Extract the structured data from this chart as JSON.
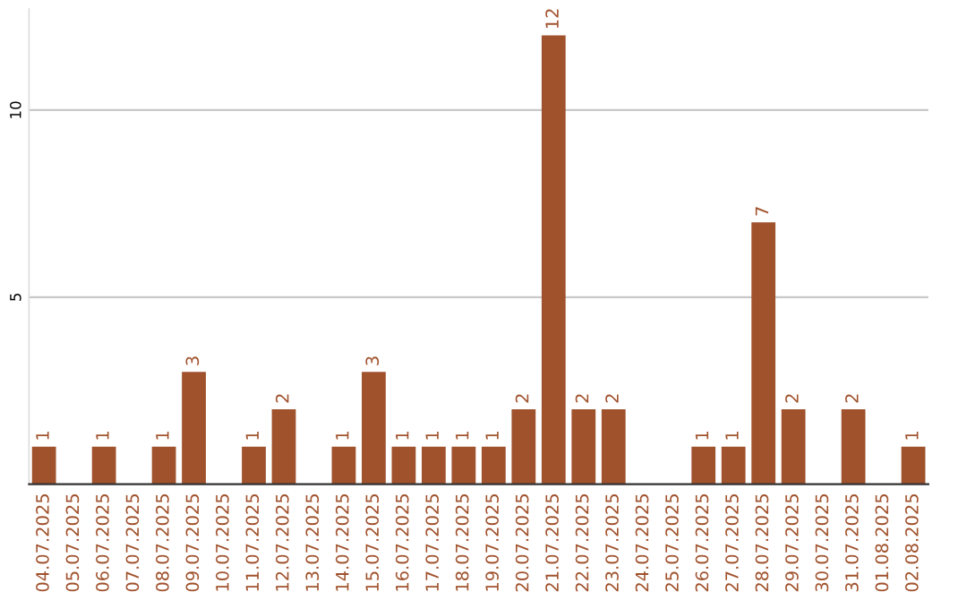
{
  "chart_data": {
    "type": "bar",
    "categories": [
      "04.07.2025",
      "05.07.2025",
      "06.07.2025",
      "07.07.2025",
      "08.07.2025",
      "09.07.2025",
      "10.07.2025",
      "11.07.2025",
      "12.07.2025",
      "13.07.2025",
      "14.07.2025",
      "15.07.2025",
      "16.07.2025",
      "17.07.2025",
      "18.07.2025",
      "19.07.2025",
      "20.07.2025",
      "21.07.2025",
      "22.07.2025",
      "23.07.2025",
      "24.07.2025",
      "25.07.2025",
      "26.07.2025",
      "27.07.2025",
      "28.07.2025",
      "29.07.2025",
      "30.07.2025",
      "31.07.2025",
      "01.08.2025",
      "02.08.2025"
    ],
    "values": [
      1,
      0,
      1,
      0,
      1,
      3,
      0,
      1,
      2,
      0,
      1,
      3,
      1,
      1,
      1,
      1,
      2,
      12,
      2,
      2,
      0,
      0,
      1,
      1,
      7,
      2,
      0,
      2,
      0,
      1
    ],
    "value_labels": [
      "1",
      null,
      "1",
      null,
      "1",
      "3",
      null,
      "1",
      "2",
      null,
      "1",
      "3",
      "1",
      "1",
      "1",
      "1",
      "2",
      "12",
      "2",
      "2",
      null,
      null,
      "1",
      "1",
      "7",
      "2",
      null,
      "2",
      null,
      "1"
    ],
    "color": "#a0522d",
    "ylim": [
      0,
      12.7
    ],
    "yticks": [
      5,
      10
    ],
    "grid": "y",
    "legend": false
  }
}
